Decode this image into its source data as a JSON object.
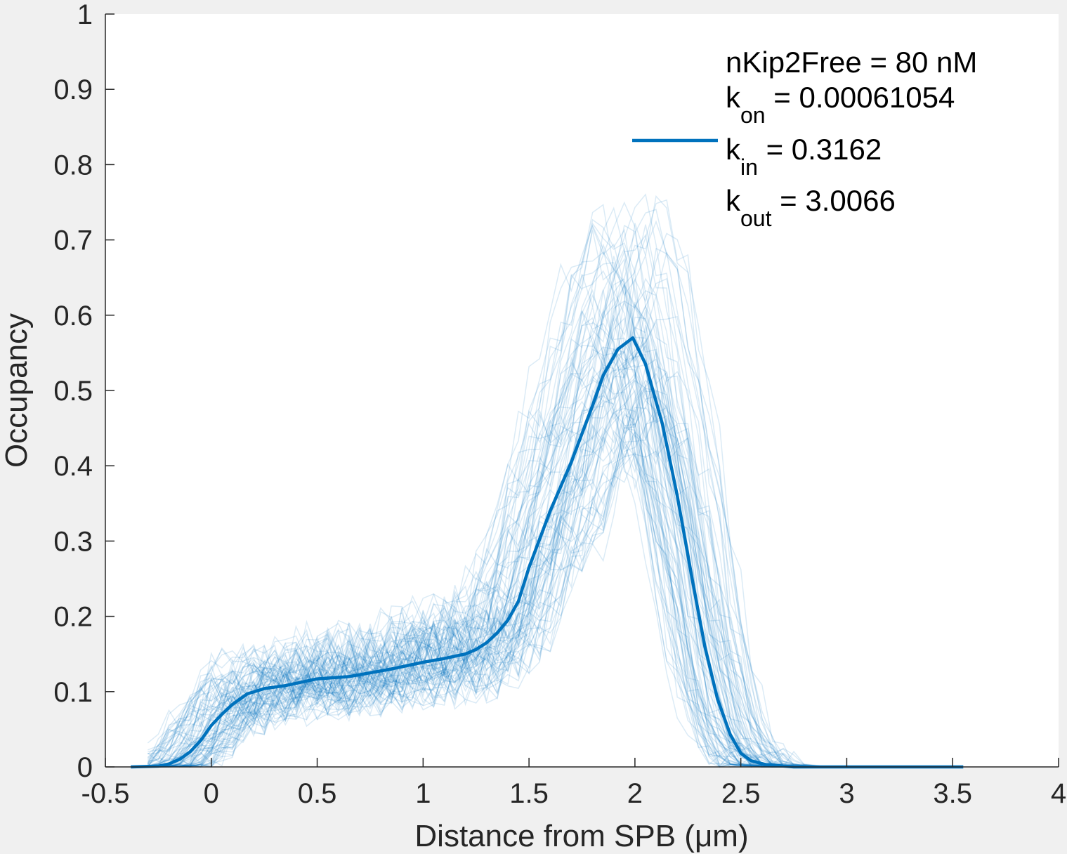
{
  "chart_data": {
    "type": "line",
    "xlabel": "Distance from SPB (μm)",
    "ylabel": "Occupancy",
    "xlim": [
      -0.5,
      4
    ],
    "ylim": [
      0,
      1
    ],
    "xticks": [
      "-0.5",
      "0",
      "0.5",
      "1",
      "1.5",
      "2",
      "2.5",
      "3",
      "3.5",
      "4"
    ],
    "yticks": [
      "0",
      "0.1",
      "0.2",
      "0.3",
      "0.4",
      "0.5",
      "0.6",
      "0.7",
      "0.8",
      "0.9",
      "1"
    ],
    "grid": false,
    "legend": {
      "position": "top-right",
      "lines": [
        {
          "main": "nKip2Free = 80 nM",
          "sub": "",
          "rest": ""
        },
        {
          "main": "k",
          "sub": "on",
          "rest": " = 0.00061054"
        },
        {
          "main": "k",
          "sub": "in",
          "rest": " = 0.3162"
        },
        {
          "main": "k",
          "sub": "out",
          "rest": " = 3.0066"
        }
      ]
    },
    "colors": {
      "mean": "#0072bd",
      "traces": "#0072bd",
      "axes": "#262626",
      "plot_bg": "#ffffff",
      "figure_bg": "#f0f0f0"
    },
    "series": [
      {
        "role": "mean",
        "x": [
          -0.38,
          -0.25,
          -0.2,
          -0.15,
          -0.1,
          -0.05,
          0.0,
          0.05,
          0.1,
          0.17,
          0.25,
          0.35,
          0.5,
          0.65,
          0.85,
          1.0,
          1.1,
          1.2,
          1.25,
          1.3,
          1.35,
          1.4,
          1.45,
          1.5,
          1.6,
          1.7,
          1.8,
          1.85,
          1.92,
          1.99,
          2.05,
          2.13,
          2.2,
          2.27,
          2.33,
          2.39,
          2.45,
          2.5,
          2.55,
          2.62,
          2.75,
          3.0,
          3.55
        ],
        "y": [
          0.0,
          0.001,
          0.004,
          0.01,
          0.02,
          0.035,
          0.055,
          0.07,
          0.083,
          0.097,
          0.104,
          0.108,
          0.117,
          0.12,
          0.13,
          0.139,
          0.144,
          0.15,
          0.156,
          0.165,
          0.178,
          0.195,
          0.22,
          0.265,
          0.34,
          0.405,
          0.48,
          0.52,
          0.555,
          0.57,
          0.535,
          0.455,
          0.36,
          0.25,
          0.16,
          0.09,
          0.043,
          0.018,
          0.008,
          0.003,
          0.0,
          0.0,
          0.0
        ]
      }
    ],
    "trace_count": 90
  }
}
